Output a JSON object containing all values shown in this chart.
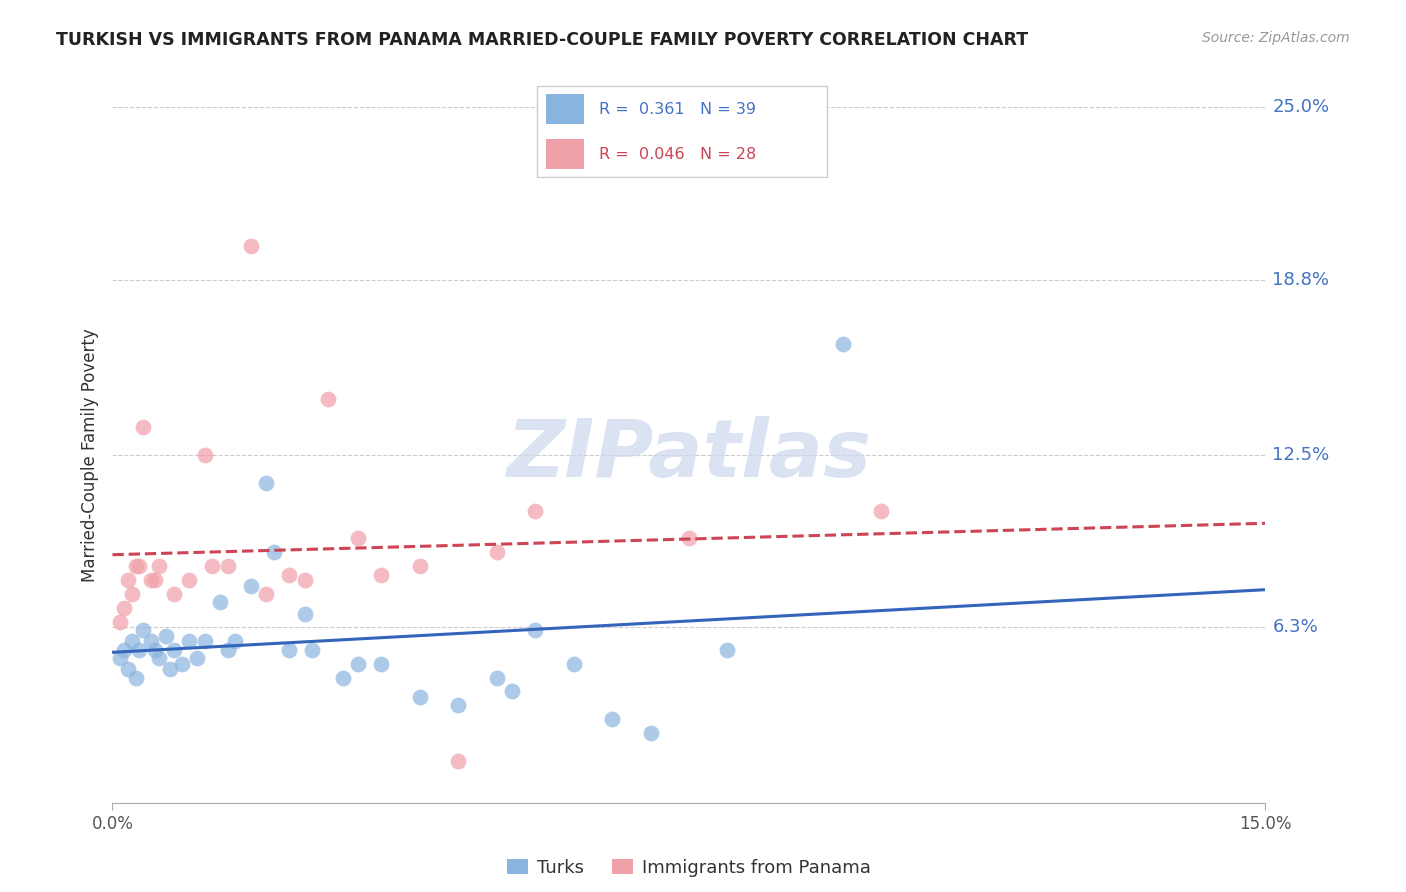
{
  "title": "TURKISH VS IMMIGRANTS FROM PANAMA MARRIED-COUPLE FAMILY POVERTY CORRELATION CHART",
  "source": "Source: ZipAtlas.com",
  "ylabel_label": "Married-Couple Family Poverty",
  "legend_label1": "Turks",
  "legend_label2": "Immigrants from Panama",
  "R1": "0.361",
  "N1": "39",
  "R2": "0.046",
  "N2": "28",
  "color1": "#8ab4e0",
  "color2": "#f0a0a8",
  "trendline1_color": "#3366bb",
  "trendline2_color": "#cc4455",
  "watermark_color": "#cdd8ef",
  "xmin": 0.0,
  "xmax": 15.0,
  "ymin": 0.0,
  "ymax": 25.0,
  "ytick_vals": [
    6.3,
    12.5,
    18.8,
    25.0
  ],
  "ytick_labels": [
    "6.3%",
    "12.5%",
    "18.8%",
    "25.0%"
  ],
  "xtick_vals": [
    0.0,
    15.0
  ],
  "xtick_labels": [
    "0.0%",
    "15.0%"
  ],
  "turks_x": [
    0.1,
    0.15,
    0.2,
    0.25,
    0.3,
    0.35,
    0.4,
    0.5,
    0.55,
    0.6,
    0.7,
    0.75,
    0.8,
    0.9,
    1.0,
    1.1,
    1.2,
    1.4,
    1.5,
    1.6,
    1.8,
    2.0,
    2.1,
    2.3,
    2.5,
    2.6,
    3.0,
    3.2,
    3.5,
    4.0,
    4.5,
    5.0,
    5.2,
    5.5,
    6.0,
    6.5,
    7.0,
    8.0,
    9.5
  ],
  "turks_y": [
    5.2,
    5.5,
    4.8,
    5.8,
    4.5,
    5.5,
    6.2,
    5.8,
    5.5,
    5.2,
    6.0,
    4.8,
    5.5,
    5.0,
    5.8,
    5.2,
    5.8,
    7.2,
    5.5,
    5.8,
    7.8,
    11.5,
    9.0,
    5.5,
    6.8,
    5.5,
    4.5,
    5.0,
    5.0,
    3.8,
    3.5,
    4.5,
    4.0,
    6.2,
    5.0,
    3.0,
    2.5,
    5.5,
    16.5
  ],
  "panama_x": [
    0.1,
    0.15,
    0.2,
    0.3,
    0.4,
    0.5,
    0.6,
    0.8,
    1.0,
    1.2,
    1.5,
    1.8,
    2.0,
    2.3,
    2.5,
    2.8,
    3.2,
    3.5,
    4.0,
    5.0,
    5.5,
    7.5,
    10.0,
    0.25,
    0.35,
    0.55,
    1.3,
    4.5
  ],
  "panama_y": [
    6.5,
    7.0,
    8.0,
    8.5,
    13.5,
    8.0,
    8.5,
    7.5,
    8.0,
    12.5,
    8.5,
    20.0,
    7.5,
    8.2,
    8.0,
    14.5,
    9.5,
    8.2,
    8.5,
    9.0,
    10.5,
    9.5,
    10.5,
    7.5,
    8.5,
    8.0,
    8.5,
    1.5
  ]
}
